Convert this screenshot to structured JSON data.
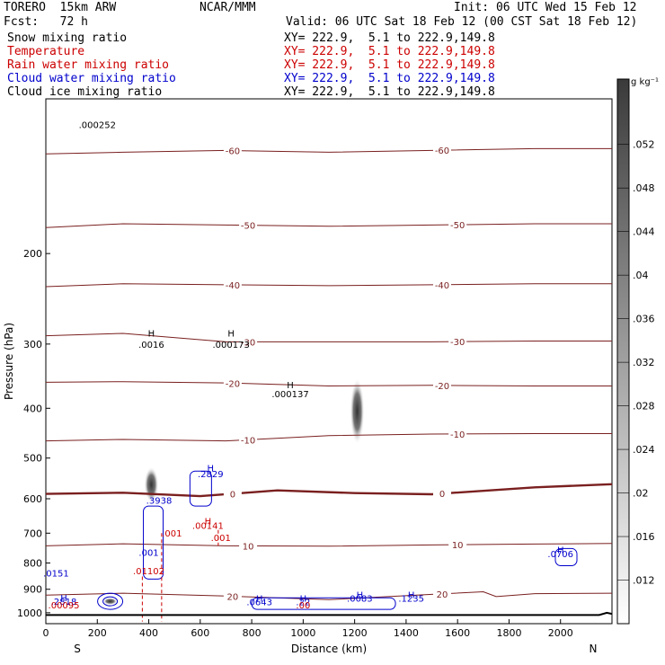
{
  "header": {
    "model": "TORERO  15km ARW",
    "center": "NCAR/MMM",
    "init": "Init: 06 UTC Wed 15 Feb 12",
    "fcst": "Fcst:   72 h",
    "valid": "Valid: 06 UTC Sat 18 Feb 12 (00 CST Sat 18 Feb 12)"
  },
  "fields": [
    {
      "name": "Snow mixing ratio",
      "xy": "XY= 222.9,  5.1 to 222.9,149.8",
      "color": "#000000"
    },
    {
      "name": "Temperature",
      "xy": "XY= 222.9,  5.1 to 222.9,149.8",
      "color": "#cc0000"
    },
    {
      "name": "Rain water mixing ratio",
      "xy": "XY= 222.9,  5.1 to 222.9,149.8",
      "color": "#cc0000"
    },
    {
      "name": "Cloud water mixing ratio",
      "xy": "XY= 222.9,  5.1 to 222.9,149.8",
      "color": "#0000cc"
    },
    {
      "name": "Cloud ice mixing ratio",
      "xy": "XY= 222.9,  5.1 to 222.9,149.8",
      "color": "#000000"
    }
  ],
  "chart_data": {
    "type": "contour-cross-section",
    "xlabel": "Distance (km)",
    "ylabel": "Pressure (hPa)",
    "xlim": [
      0,
      2200
    ],
    "ylim": [
      1050,
      100
    ],
    "x_ticks": [
      0,
      200,
      400,
      600,
      800,
      1000,
      1200,
      1400,
      1600,
      1800,
      2000
    ],
    "y_ticks": [
      200,
      300,
      400,
      500,
      600,
      700,
      800,
      900,
      1000
    ],
    "endpoint_labels": {
      "left": "S",
      "right": "N"
    },
    "colorbar": {
      "unit": "g kg⁻¹",
      "ticks": [
        ".012",
        ".016",
        ".02",
        ".024",
        ".028",
        ".032",
        ".036",
        ".04",
        ".044",
        ".048",
        ".052"
      ]
    },
    "temperature_contours": [
      {
        "label": "-60",
        "x": [
          0,
          300,
          700,
          1100,
          1500,
          1900,
          2200
        ],
        "p": [
          128,
          127,
          126,
          127,
          126,
          125,
          125
        ]
      },
      {
        "label": "-50",
        "x": [
          0,
          300,
          700,
          1100,
          1500,
          1900,
          2200
        ],
        "p": [
          178,
          175,
          176,
          177,
          176,
          175,
          175
        ]
      },
      {
        "label": "-40",
        "x": [
          0,
          300,
          700,
          1100,
          1500,
          1900,
          2200
        ],
        "p": [
          232,
          229,
          230,
          231,
          230,
          229,
          229
        ]
      },
      {
        "label": "-30",
        "x": [
          0,
          300,
          700,
          1100,
          1500,
          1900,
          2200
        ],
        "p": [
          289,
          286,
          297,
          297,
          297,
          296,
          296
        ]
      },
      {
        "label": "-20",
        "x": [
          0,
          300,
          700,
          1100,
          1500,
          1900,
          2200
        ],
        "p": [
          356,
          355,
          357,
          362,
          361,
          362,
          362
        ]
      },
      {
        "label": "-10",
        "x": [
          0,
          300,
          700,
          1100,
          1500,
          1900,
          2200
        ],
        "p": [
          463,
          460,
          463,
          452,
          449,
          448,
          448
        ]
      },
      {
        "label": "0",
        "x": [
          0,
          300,
          600,
          900,
          1200,
          1500,
          1900,
          2200
        ],
        "p": [
          587,
          584,
          593,
          578,
          585,
          588,
          570,
          562
        ]
      },
      {
        "label": "10",
        "x": [
          0,
          300,
          700,
          1100,
          1500,
          1900,
          2200
        ],
        "p": [
          741,
          734,
          741,
          742,
          738,
          735,
          733
        ]
      },
      {
        "label": "20",
        "x": [
          0,
          300,
          700,
          1100,
          1500,
          1700,
          1750,
          1900,
          2200
        ],
        "p": [
          924,
          916,
          928,
          943,
          921,
          910,
          930,
          918,
          916
        ]
      }
    ],
    "annotations": [
      {
        "text": "H",
        "x": 410,
        "p": 290,
        "color": "#000000"
      },
      {
        "text": ".0016",
        "x": 410,
        "p": 305,
        "color": "#000000"
      },
      {
        "text": "H",
        "x": 720,
        "p": 290,
        "color": "#000000"
      },
      {
        "text": ".000173",
        "x": 720,
        "p": 305,
        "color": "#000000"
      },
      {
        "text": "H",
        "x": 950,
        "p": 366,
        "color": "#000000"
      },
      {
        "text": ".000137",
        "x": 950,
        "p": 381,
        "color": "#000000"
      },
      {
        "text": ".000252",
        "x": 200,
        "p": 114,
        "color": "#000000"
      },
      {
        "text": "H",
        "x": 640,
        "p": 531,
        "color": "#0000cc"
      },
      {
        "text": ".2829",
        "x": 640,
        "p": 545,
        "color": "#0000cc"
      },
      {
        "text": ".3938",
        "x": 440,
        "p": 614,
        "color": "#0000cc"
      },
      {
        "text": ".001",
        "x": 400,
        "p": 774,
        "color": "#0000cc"
      },
      {
        "text": "H",
        "x": 630,
        "p": 673,
        "color": "#cc0000"
      },
      {
        "text": ".00141",
        "x": 630,
        "p": 686,
        "color": "#cc0000"
      },
      {
        "text": ".001",
        "x": 490,
        "p": 710,
        "color": "#cc0000"
      },
      {
        "text": ".001",
        "x": 680,
        "p": 725,
        "color": "#cc0000"
      },
      {
        "text": ".01102",
        "x": 400,
        "p": 842,
        "color": "#cc0000"
      },
      {
        "text": ".0151",
        "x": 40,
        "p": 850,
        "color": "#0000cc"
      },
      {
        "text": "H",
        "x": 2000,
        "p": 765,
        "color": "#0000cc"
      },
      {
        "text": ".0706",
        "x": 2000,
        "p": 780,
        "color": "#0000cc"
      },
      {
        "text": "H",
        "x": 70,
        "p": 950,
        "color": "#0000cc"
      },
      {
        "text": ".2818",
        "x": 70,
        "p": 965,
        "color": "#0000cc"
      },
      {
        "text": ".00095",
        "x": 70,
        "p": 980,
        "color": "#cc0000"
      },
      {
        "text": "H",
        "x": 830,
        "p": 952,
        "color": "#0000cc"
      },
      {
        "text": ".0643",
        "x": 830,
        "p": 967,
        "color": "#0000cc"
      },
      {
        "text": "H",
        "x": 1000,
        "p": 952,
        "color": "#0000cc"
      },
      {
        "text": ".22",
        "x": 1000,
        "p": 967,
        "color": "#0000cc"
      },
      {
        "text": ".00",
        "x": 1000,
        "p": 980,
        "color": "#cc0000"
      },
      {
        "text": "H",
        "x": 1220,
        "p": 937,
        "color": "#0000cc"
      },
      {
        "text": ".0083",
        "x": 1220,
        "p": 952,
        "color": "#0000cc"
      },
      {
        "text": "H",
        "x": 1420,
        "p": 937,
        "color": "#0000cc"
      },
      {
        "text": ".1235",
        "x": 1420,
        "p": 952,
        "color": "#0000cc"
      }
    ],
    "snow_features": [
      {
        "x": 410,
        "p_top": 520,
        "p_bottom": 610
      },
      {
        "x": 1210,
        "p_top": 350,
        "p_bottom": 470
      },
      {
        "x": 250,
        "p_top": 935,
        "p_bottom": 965
      }
    ]
  }
}
